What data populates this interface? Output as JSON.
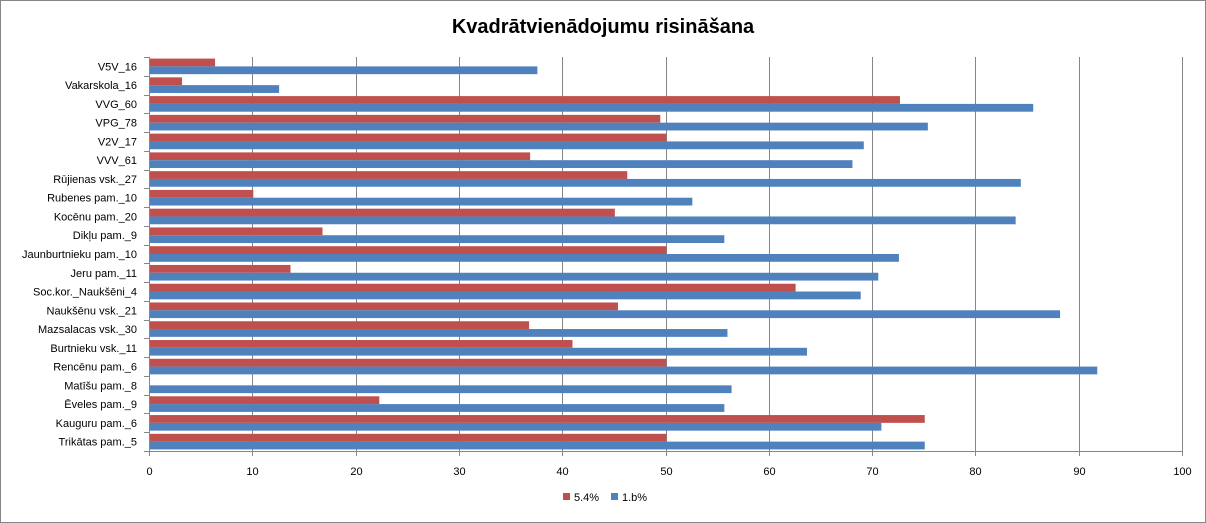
{
  "chart_data": {
    "type": "bar",
    "orientation": "horizontal",
    "title": "Kvadrātvienādojumu risināšana",
    "xlabel": "",
    "ylabel": "",
    "xlim": [
      0,
      100
    ],
    "xticks": [
      0,
      10,
      20,
      30,
      40,
      50,
      60,
      70,
      80,
      90,
      100
    ],
    "grid": true,
    "legend_position": "bottom",
    "categories": [
      "V5V_16",
      "Vakarskola_16",
      "VVG_60",
      "VPG_78",
      "V2V_17",
      "VVV_61",
      "Rūjienas vsk._27",
      "Rubenes pam._10",
      "Kocēnu pam._20",
      "Dikļu pam._9",
      "Jaunburtnieku pam._10",
      "Jeru pam._11",
      "Soc.kor._Naukšēni_4",
      "Naukšēnu vsk._21",
      "Mazsalacas vsk._30",
      "Burtnieku vsk._11",
      "Rencēnu pam._6",
      "Matīšu pam._8",
      "Ēveles pam._9",
      "Kauguru pam._6",
      "Trikātas pam._5"
    ],
    "series": [
      {
        "name": "5.4%",
        "color": "#C0504D",
        "values": [
          6.3,
          3.1,
          72.6,
          49.4,
          50.0,
          36.8,
          46.2,
          10.0,
          45.0,
          16.7,
          50.0,
          13.6,
          62.5,
          45.3,
          36.7,
          40.9,
          50.0,
          0,
          22.2,
          75.0,
          50.0
        ]
      },
      {
        "name": "1.b%",
        "color": "#4F81BD",
        "values": [
          37.5,
          12.5,
          85.5,
          75.3,
          69.1,
          68.0,
          84.3,
          52.5,
          83.8,
          55.6,
          72.5,
          70.5,
          68.8,
          88.1,
          55.9,
          63.6,
          91.7,
          56.3,
          55.6,
          70.8,
          75.0
        ]
      }
    ]
  }
}
